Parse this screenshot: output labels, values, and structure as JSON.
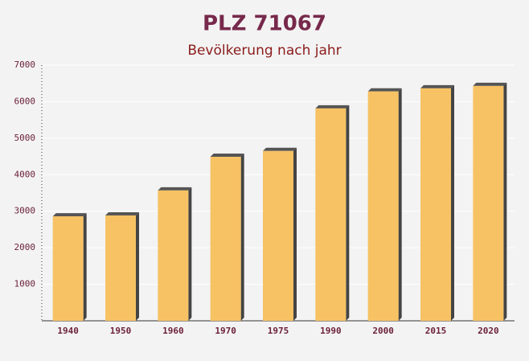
{
  "chart_data": {
    "type": "bar",
    "title": "PLZ 71067",
    "subtitle": "Bevölkerung nach jahr",
    "categories": [
      "1940",
      "1950",
      "1960",
      "1970",
      "1975",
      "1990",
      "2000",
      "2015",
      "2020"
    ],
    "values": [
      2860,
      2885,
      3570,
      4490,
      4650,
      5815,
      6280,
      6365,
      6430
    ],
    "color": "#f7c264",
    "ylim": [
      0,
      7000
    ],
    "yticks": [
      1000,
      2000,
      3000,
      4000,
      5000,
      6000,
      7000
    ],
    "grid": true
  }
}
